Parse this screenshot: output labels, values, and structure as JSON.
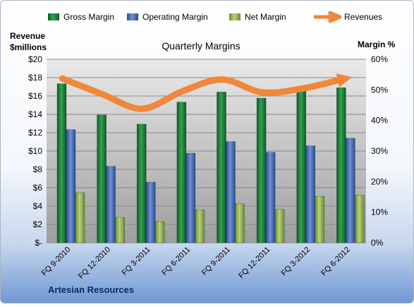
{
  "chart_data": {
    "type": "bar",
    "title": "Quarterly Margins",
    "company": "Artesian Resources",
    "left_axis": {
      "label_line1": "Revenue",
      "label_line2": "$millions",
      "ticks": [
        "$-",
        "$2",
        "$4",
        "$6",
        "$8",
        "$10",
        "$12",
        "$14",
        "$16",
        "$18",
        "$20"
      ],
      "range": [
        0,
        20
      ]
    },
    "right_axis": {
      "label": "Margin %",
      "ticks": [
        "0%",
        "10%",
        "20%",
        "30%",
        "40%",
        "50%",
        "60%"
      ],
      "range": [
        0,
        60
      ]
    },
    "categories": [
      "FQ 9-2010",
      "FQ 12-2010",
      "FQ 3-2011",
      "FQ 6-2011",
      "FQ 9-2011",
      "FQ 12-2011",
      "FQ 3-2012",
      "FQ 6-2012"
    ],
    "legend": [
      "Gross Margin",
      "Operating Margin",
      "Net Margin",
      "Revenues"
    ],
    "legend_position": "top",
    "grid": true,
    "series": [
      {
        "name": "Gross Margin",
        "type": "bar",
        "axis": "right",
        "color": "#1F8A3C",
        "values": [
          52,
          41.8,
          38.8,
          46,
          49.3,
          47.3,
          49.8,
          50.7
        ]
      },
      {
        "name": "Operating Margin",
        "type": "bar",
        "axis": "right",
        "color": "#4A70B8",
        "values": [
          37,
          25,
          19.8,
          29.3,
          33.1,
          29.6,
          31.7,
          34.2
        ]
      },
      {
        "name": "Net Margin",
        "type": "bar",
        "axis": "right",
        "color": "#9BBB59",
        "values": [
          16.4,
          8.3,
          6.9,
          10.8,
          12.8,
          10.9,
          15.2,
          15.6
        ]
      },
      {
        "name": "Revenues",
        "type": "line",
        "axis": "left",
        "color": "#F0873A",
        "values": [
          17.9,
          16.2,
          14.6,
          16.5,
          17.8,
          16.4,
          16.8,
          17.8
        ]
      }
    ]
  }
}
